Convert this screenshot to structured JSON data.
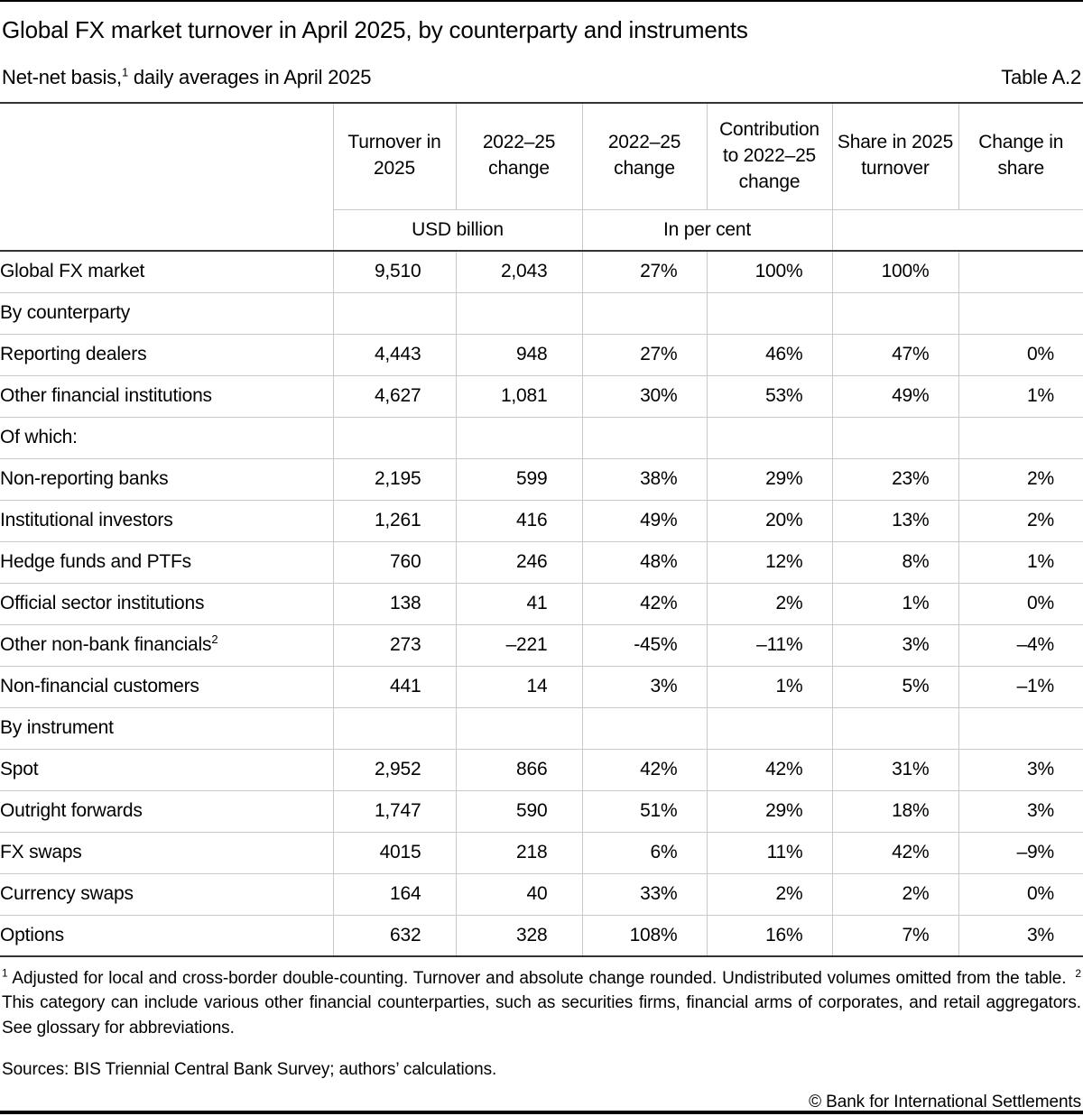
{
  "page": {
    "title": "Global FX market turnover in April 2025, by counterparty and instruments",
    "subtitle_prefix": "Net-net basis,",
    "subtitle_sup": "1",
    "subtitle_suffix": " daily averages in April 2025",
    "table_label": "Table A.2"
  },
  "table": {
    "col_headers": [
      "Turnover in 2025",
      "2022–25 change",
      "2022–25 change",
      "Contribution to 2022–25 change",
      "Share in 2025 turnover",
      "Change in share"
    ],
    "unit_usd": "USD billion",
    "unit_pct": "In per cent",
    "rows": [
      {
        "label": "Global FX market",
        "indent": 0,
        "bold": true,
        "values": [
          "9,510",
          "2,043",
          "27%",
          "100%",
          "100%",
          ""
        ]
      },
      {
        "label": "By counterparty",
        "indent": 0,
        "bold": false,
        "values": [
          "",
          "",
          "",
          "",
          "",
          ""
        ]
      },
      {
        "label": "Reporting dealers",
        "indent": 1,
        "bold": false,
        "values": [
          "4,443",
          "948",
          "27%",
          "46%",
          "47%",
          "0%"
        ]
      },
      {
        "label": "Other financial institutions",
        "indent": 1,
        "bold": false,
        "values": [
          "4,627",
          "1,081",
          "30%",
          "53%",
          "49%",
          "1%"
        ]
      },
      {
        "label": "Of which:",
        "indent": 2,
        "bold": false,
        "values": [
          "",
          "",
          "",
          "",
          "",
          ""
        ]
      },
      {
        "label": "Non-reporting banks",
        "indent": 2,
        "bold": false,
        "values": [
          "2,195",
          "599",
          "38%",
          "29%",
          "23%",
          "2%"
        ]
      },
      {
        "label": "Institutional investors",
        "indent": 2,
        "bold": false,
        "values": [
          "1,261",
          "416",
          "49%",
          "20%",
          "13%",
          "2%"
        ]
      },
      {
        "label": "Hedge funds and PTFs",
        "indent": 2,
        "bold": false,
        "values": [
          "760",
          "246",
          "48%",
          "12%",
          "8%",
          "1%"
        ]
      },
      {
        "label": "Official sector institutions",
        "indent": 2,
        "bold": false,
        "values": [
          "138",
          "41",
          "42%",
          "2%",
          "1%",
          "0%"
        ]
      },
      {
        "label": "Other non-bank financials",
        "sup": "2",
        "indent": 2,
        "bold": false,
        "values": [
          "273",
          "–221",
          "-45%",
          "–11%",
          "3%",
          "–4%"
        ]
      },
      {
        "label": "Non-financial customers",
        "indent": 1,
        "bold": false,
        "values": [
          "441",
          "14",
          "3%",
          "1%",
          "5%",
          "–1%"
        ]
      },
      {
        "label": "By instrument",
        "indent": 0,
        "bold": false,
        "values": [
          "",
          "",
          "",
          "",
          "",
          ""
        ]
      },
      {
        "label": "Spot",
        "indent": 1,
        "bold": false,
        "values": [
          "2,952",
          "866",
          "42%",
          "42%",
          "31%",
          "3%"
        ]
      },
      {
        "label": "Outright forwards",
        "indent": 1,
        "bold": false,
        "values": [
          "1,747",
          "590",
          "51%",
          "29%",
          "18%",
          "3%"
        ]
      },
      {
        "label": "FX swaps",
        "indent": 1,
        "bold": false,
        "values": [
          "4015",
          "218",
          "6%",
          "11%",
          "42%",
          "–9%"
        ]
      },
      {
        "label": "Currency swaps",
        "indent": 1,
        "bold": false,
        "values": [
          "164",
          "40",
          "33%",
          "2%",
          "2%",
          "0%"
        ]
      },
      {
        "label": "Options",
        "indent": 1,
        "bold": false,
        "values": [
          "632",
          "328",
          "108%",
          "16%",
          "7%",
          "3%"
        ]
      }
    ]
  },
  "footnotes": {
    "fn1_sup": "1",
    "fn1_text": "Adjusted for local and cross-border double-counting. Turnover and absolute change rounded. Undistributed volumes omitted from the table.",
    "fn2_sup": "2",
    "fn2_text": "This category can include various other financial counterparties, such as securities firms, financial arms of corporates, and retail aggregators. See glossary for abbreviations."
  },
  "sources": "Sources: BIS Triennial Central Bank Survey; authors’ calculations.",
  "copyright": "© Bank for International Settlements",
  "colors": {
    "grid_line": "#c9c9c9",
    "dark_rule": "#333333",
    "page_rule": "#000000",
    "text": "#000000",
    "background": "#ffffff"
  }
}
